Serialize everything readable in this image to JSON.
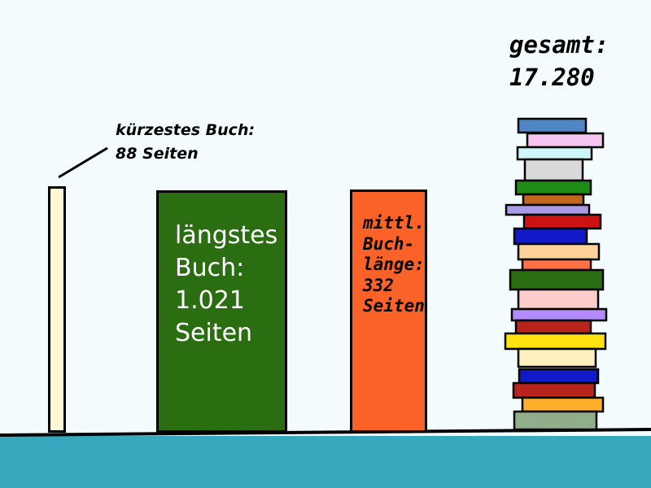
{
  "labels": {
    "shortest_line1": "kürzestes Buch:",
    "shortest_line2": "88 Seiten",
    "longest_line1": "längstes",
    "longest_line2": "Buch:",
    "longest_line3": "1.021",
    "longest_line4": "Seiten",
    "average_line1": "mittl.",
    "average_line2": "Buch-",
    "average_line3": "länge:",
    "average_line4": "332",
    "average_line5": "Seiten",
    "total_line1": "gesamt:",
    "total_line2": "17.280"
  },
  "colors": {
    "background": "#f3fbfd",
    "ground": "#37a9bf",
    "shortest_book": "#fff6d5",
    "longest_book": "#2b6e11",
    "average_book": "#fb6228"
  },
  "stack_book_colors": [
    "#4f86c6",
    "#f6c6f0",
    "#cdf6fb",
    "#d9d9d9",
    "#1f8a14",
    "#c1661d",
    "#a99be6",
    "#cc1212",
    "#1119c8",
    "#ffd39a",
    "#ff7045",
    "#2b6e11",
    "#ffcccc",
    "#b48bff",
    "#b8241c",
    "#ffe20f",
    "#fff0c0",
    "#1119c8",
    "#b8241c",
    "#ffb02a",
    "#8fae8a"
  ]
}
